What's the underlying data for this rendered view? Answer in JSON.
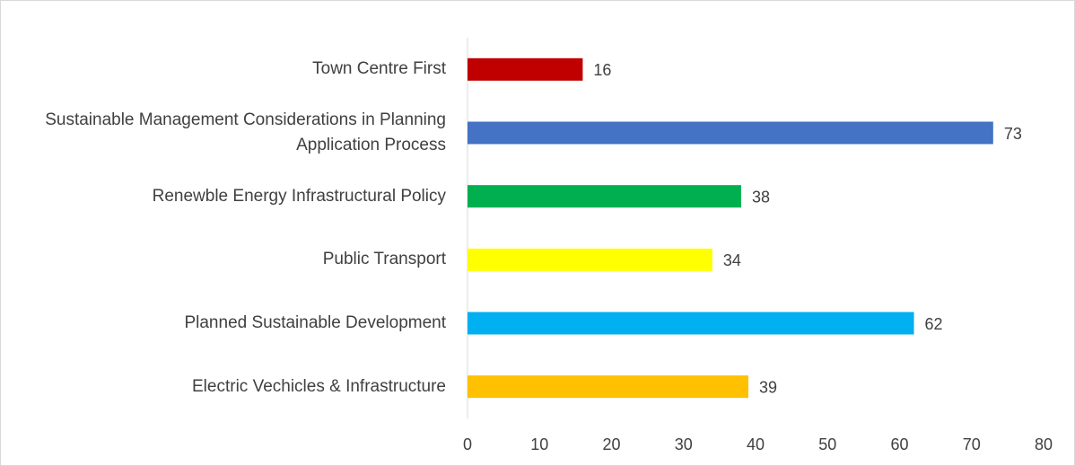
{
  "chart_data": {
    "type": "bar",
    "orientation": "horizontal",
    "categories": [
      "Town Centre First",
      "Sustainable Management Considerations in Planning Application Process",
      "Renewble Energy Infrastructural Policy",
      "Public Transport",
      "Planned Sustainable Development",
      "Electric Vechicles & Infrastructure"
    ],
    "values": [
      16,
      73,
      38,
      34,
      62,
      39
    ],
    "colors": [
      "#c00000",
      "#4472c4",
      "#00b050",
      "#ffff00",
      "#00b0f0",
      "#ffc000"
    ],
    "xlim": [
      0,
      80
    ],
    "xticks": [
      0,
      10,
      20,
      30,
      40,
      50,
      60,
      70,
      80
    ],
    "grid": false
  }
}
